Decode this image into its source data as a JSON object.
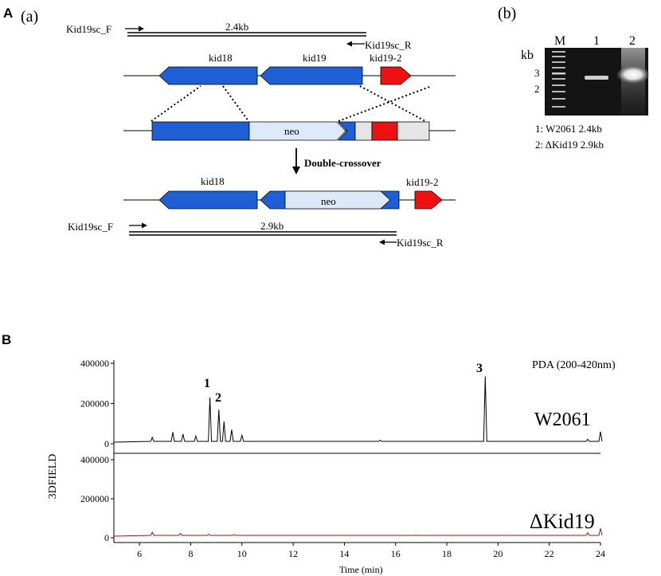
{
  "panel_a": {
    "letter": "A",
    "sublabel": "(a)",
    "top_forward_primer": "Kid19sc_F",
    "top_reverse_primer": "Kid19sc_R",
    "top_amplicon": "2.4kb",
    "gene_kid18": "kid18",
    "gene_kid19": "kid19",
    "gene_kid19_2": "kid19-2",
    "construct_neo": "neo",
    "step_label": "Double-crossover",
    "result_kid18": "kid18",
    "result_neo": "neo",
    "result_kid19_2": "kid19-2",
    "bottom_forward_primer": "Kid19sc_F",
    "bottom_reverse_primer": "Kid19sc_R",
    "bottom_amplicon": "2.9kb"
  },
  "panel_b": {
    "sublabel": "(b)",
    "kb_label": "kb",
    "lane_m": "M",
    "lane_1": "1",
    "lane_2": "2",
    "marker_3": "3",
    "marker_2": "2",
    "legend_1": "1: W2061  2.4kb",
    "legend_2": "2: ΔKid19  2.9kb"
  },
  "panel_B": {
    "letter": "B",
    "detector": "PDA (200-420nm)",
    "y_axis_label": "3DFIELD",
    "x_axis_label": "Time (min)",
    "top_trace_label": "W2061",
    "bottom_trace_label": "ΔKid19",
    "peak_1": "1",
    "peak_2": "2",
    "peak_3": "3"
  },
  "colors": {
    "gene_blue": "#1f5fd6",
    "neo_fill": "#dce9f8",
    "kid19_2_red": "#ee1111",
    "gray_box": "#e5e5e5",
    "top_trace": "#000000",
    "bottom_trace": "#8b1a1a"
  },
  "chart_data": [
    {
      "type": "line",
      "name": "W2061",
      "x_range": [
        5,
        24
      ],
      "ylim": [
        0,
        400000
      ],
      "y_ticks": [
        0,
        200000,
        400000
      ],
      "x_ticks": [
        6,
        8,
        10,
        12,
        14,
        16,
        18,
        20,
        22,
        24
      ],
      "peaks": [
        {
          "label": "1",
          "time": 8.75,
          "value": 230000
        },
        {
          "label": "2",
          "time": 9.1,
          "value": 170000
        },
        {
          "label": "3",
          "time": 19.5,
          "value": 335000
        }
      ],
      "x": [
        5.0,
        6.5,
        7.3,
        7.7,
        8.2,
        8.75,
        9.1,
        9.3,
        9.6,
        10.0,
        12.0,
        15.4,
        19.5,
        23.5,
        24.0
      ],
      "values": [
        8000,
        32000,
        58000,
        48000,
        38000,
        230000,
        170000,
        110000,
        70000,
        42000,
        12000,
        18000,
        335000,
        22000,
        60000
      ]
    },
    {
      "type": "line",
      "name": "ΔKid19",
      "x_range": [
        5,
        24
      ],
      "ylim": [
        0,
        400000
      ],
      "y_ticks": [
        0,
        200000,
        400000
      ],
      "x_ticks": [
        6,
        8,
        10,
        12,
        14,
        16,
        18,
        20,
        22,
        24
      ],
      "x": [
        5.0,
        6.5,
        7.6,
        8.7,
        9.7,
        16.8,
        20.5,
        23.5,
        24.0
      ],
      "values": [
        8000,
        28000,
        22000,
        18000,
        16000,
        14000,
        12000,
        26000,
        48000
      ]
    }
  ]
}
